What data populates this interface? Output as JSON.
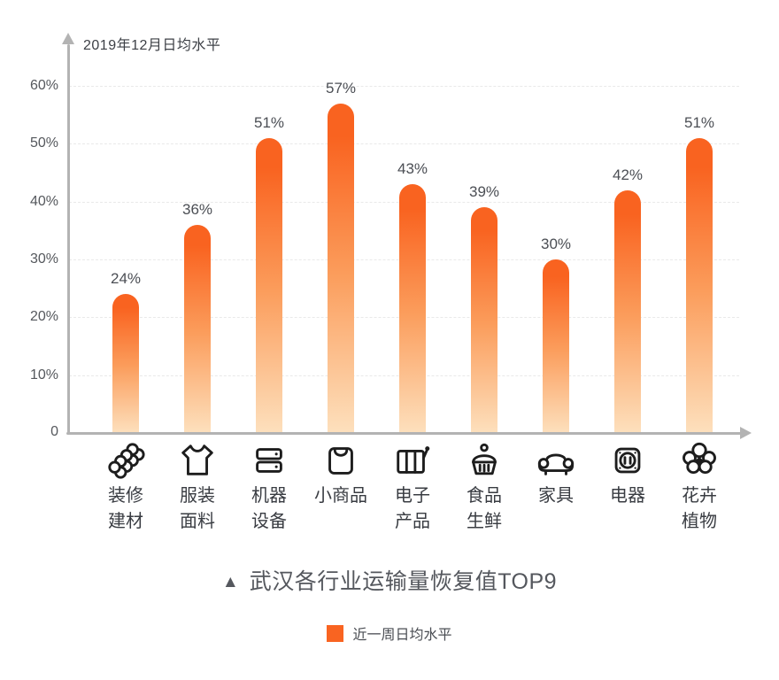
{
  "colors": {
    "bar_top": "#f96320",
    "bar_mid": "#fb9d5c",
    "bar_bottom": "#fde0bd",
    "axis": "#b3b3b3",
    "grid": "#e9e9e9",
    "legend_swatch": "#f96421",
    "text_dark": "#4b4e54"
  },
  "chart_data": {
    "type": "bar",
    "title": "武汉各行业运输量恢复值TOP9",
    "title_marker": "▲",
    "y_axis_title": "2019年12月日均水平",
    "categories": [
      "装修建材",
      "服装面料",
      "机器设备",
      "小商品",
      "电子产品",
      "食品生鲜",
      "家具",
      "电器",
      "花卉植物"
    ],
    "category_display": [
      "装修\n建材",
      "服装\n面料",
      "机器\n设备",
      "小商品",
      "电子\n产品",
      "食品\n生鲜",
      "家具",
      "电器",
      "花卉\n植物"
    ],
    "category_icons": [
      "pipes-materials-icon",
      "tshirt-icon",
      "server-machines-icon",
      "shopping-bag-icon",
      "electronics-machine-icon",
      "food-basket-icon",
      "sofa-icon",
      "power-socket-icon",
      "flower-icon"
    ],
    "values": [
      24,
      36,
      51,
      57,
      43,
      39,
      30,
      42,
      51
    ],
    "value_labels": [
      "24%",
      "36%",
      "51%",
      "57%",
      "43%",
      "39%",
      "30%",
      "42%",
      "51%"
    ],
    "y_ticks": [
      "60%",
      "50%",
      "40%",
      "30%",
      "20%",
      "10%",
      "0"
    ],
    "ylim": [
      0,
      60
    ],
    "grid": true,
    "legend": [
      {
        "name": "近一周日均水平",
        "color": "#f96421"
      }
    ],
    "legend_position": "bottom"
  }
}
